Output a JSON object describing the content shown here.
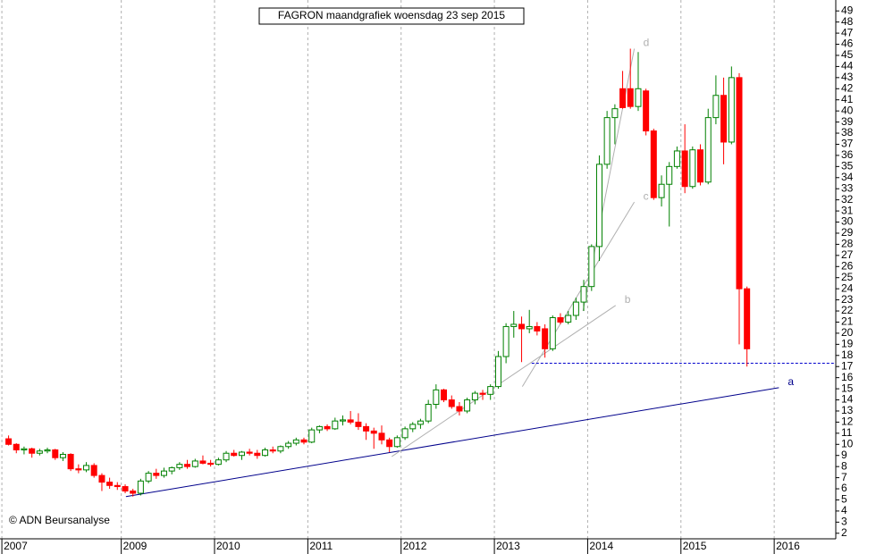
{
  "chart_data": {
    "type": "candlestick",
    "title": "FAGRON maandgrafiek woensdag 23 sep 2015",
    "annotation": "© ADN Beursanalyse",
    "x": [
      2007.792,
      2007.875,
      2007.958,
      2008.042,
      2008.125,
      2008.208,
      2008.292,
      2008.375,
      2008.458,
      2008.542,
      2008.625,
      2008.708,
      2008.792,
      2008.875,
      2008.958,
      2009.042,
      2009.125,
      2009.208,
      2009.292,
      2009.375,
      2009.458,
      2009.542,
      2009.625,
      2009.708,
      2009.792,
      2009.875,
      2009.958,
      2010.042,
      2010.125,
      2010.208,
      2010.292,
      2010.375,
      2010.458,
      2010.542,
      2010.625,
      2010.708,
      2010.792,
      2010.875,
      2010.958,
      2011.042,
      2011.125,
      2011.208,
      2011.292,
      2011.375,
      2011.458,
      2011.542,
      2011.625,
      2011.708,
      2011.792,
      2011.875,
      2011.958,
      2012.042,
      2012.125,
      2012.208,
      2012.292,
      2012.375,
      2012.458,
      2012.542,
      2012.625,
      2012.708,
      2012.792,
      2012.875,
      2012.958,
      2013.042,
      2013.125,
      2013.208,
      2013.292,
      2013.375,
      2013.458,
      2013.542,
      2013.625,
      2013.708,
      2013.792,
      2013.875,
      2013.958,
      2014.042,
      2014.125,
      2014.208,
      2014.292,
      2014.375,
      2014.458,
      2014.542,
      2014.625,
      2014.708,
      2014.792,
      2014.875,
      2014.958,
      2015.042,
      2015.125,
      2015.208,
      2015.292,
      2015.375,
      2015.458,
      2015.542,
      2015.625,
      2015.708
    ],
    "open": [
      10.5,
      10.0,
      9.5,
      9.6,
      9.2,
      9.4,
      9.5,
      8.8,
      9.1,
      7.8,
      7.7,
      8.1,
      7.2,
      6.6,
      6.3,
      6.2,
      5.8,
      5.6,
      6.7,
      7.4,
      7.2,
      7.6,
      7.9,
      8.2,
      8.0,
      8.5,
      8.3,
      8.2,
      8.6,
      9.2,
      9.0,
      9.3,
      9.2,
      9.0,
      9.5,
      9.4,
      9.8,
      10.1,
      10.4,
      10.2,
      11.3,
      11.6,
      11.4,
      12.1,
      12.2,
      12.0,
      11.6,
      11.2,
      11.0,
      10.4,
      9.8,
      10.6,
      11.4,
      11.8,
      12.1,
      13.6,
      14.9,
      14.0,
      13.4,
      13.0,
      14.0,
      14.6,
      14.5,
      15.2,
      17.9,
      20.6,
      20.8,
      20.4,
      20.6,
      20.4,
      18.6,
      21.4,
      21.0,
      21.6,
      22.8,
      24.2,
      27.8,
      35.2,
      39.4,
      42.0,
      42.0,
      40.4,
      41.8,
      38.2,
      32.2,
      33.4,
      35.0,
      36.4,
      33.2,
      36.5,
      33.6,
      39.4,
      41.4,
      37.2,
      43.0,
      24.0
    ],
    "high": [
      10.8,
      10.1,
      9.8,
      9.7,
      9.6,
      9.7,
      9.6,
      9.3,
      9.2,
      8.2,
      8.4,
      8.3,
      7.4,
      7.0,
      6.6,
      6.4,
      6.0,
      6.9,
      7.6,
      7.8,
      7.9,
      8.0,
      8.4,
      8.6,
      8.7,
      9.0,
      8.6,
      8.8,
      9.4,
      9.5,
      9.4,
      9.6,
      9.5,
      9.7,
      9.8,
      9.9,
      10.3,
      10.6,
      10.6,
      11.5,
      11.7,
      11.8,
      12.4,
      12.6,
      13.0,
      12.8,
      11.9,
      11.5,
      11.7,
      10.6,
      10.8,
      11.6,
      12.0,
      12.3,
      14.0,
      15.4,
      15.0,
      14.4,
      13.8,
      14.2,
      14.8,
      14.9,
      15.4,
      18.4,
      20.9,
      22.0,
      21.5,
      22.1,
      21.0,
      20.8,
      21.6,
      21.8,
      22.0,
      23.2,
      24.8,
      28.0,
      36.0,
      40.0,
      40.6,
      43.6,
      45.6,
      45.3,
      42.0,
      38.4,
      34.2,
      35.4,
      36.8,
      38.8,
      36.8,
      37.0,
      40.2,
      43.2,
      43.0,
      44.0,
      43.4,
      24.2
    ],
    "low": [
      9.9,
      9.2,
      9.1,
      8.8,
      9.0,
      9.2,
      8.6,
      8.5,
      7.6,
      7.4,
      7.5,
      7.0,
      5.8,
      6.0,
      5.9,
      5.6,
      5.3,
      5.4,
      6.5,
      6.9,
      7.0,
      7.3,
      7.7,
      7.8,
      7.9,
      8.2,
      8.0,
      8.1,
      8.4,
      8.9,
      8.6,
      9.0,
      8.7,
      8.9,
      9.2,
      9.2,
      9.6,
      9.9,
      10.0,
      10.1,
      11.0,
      11.2,
      11.3,
      11.7,
      11.8,
      11.3,
      10.4,
      9.6,
      10.0,
      9.3,
      9.7,
      10.4,
      11.1,
      11.4,
      11.9,
      13.2,
      13.8,
      13.2,
      12.6,
      12.8,
      13.6,
      14.0,
      14.0,
      15.0,
      17.3,
      19.6,
      17.4,
      20.0,
      19.8,
      17.8,
      18.4,
      20.8,
      20.8,
      21.2,
      22.0,
      23.8,
      26.5,
      34.8,
      37.0,
      40.2,
      40.2,
      40.0,
      37.8,
      32.0,
      31.4,
      29.6,
      34.8,
      32.6,
      33.0,
      33.3,
      33.4,
      38.8,
      35.2,
      37.0,
      19.0,
      17.0
    ],
    "close": [
      10.0,
      9.5,
      9.6,
      9.2,
      9.4,
      9.5,
      8.8,
      9.1,
      7.8,
      7.7,
      8.1,
      7.2,
      6.6,
      6.3,
      6.2,
      5.8,
      5.6,
      6.7,
      7.4,
      7.2,
      7.6,
      7.9,
      8.2,
      8.0,
      8.5,
      8.3,
      8.2,
      8.6,
      9.2,
      9.0,
      9.3,
      9.2,
      9.0,
      9.5,
      9.4,
      9.8,
      10.1,
      10.4,
      10.2,
      11.3,
      11.6,
      11.4,
      12.1,
      12.2,
      12.0,
      11.6,
      11.2,
      11.0,
      10.4,
      9.8,
      10.6,
      11.4,
      11.8,
      12.1,
      13.6,
      14.9,
      14.0,
      13.4,
      13.0,
      14.0,
      14.6,
      14.5,
      15.2,
      17.9,
      20.6,
      20.8,
      20.4,
      20.6,
      20.2,
      18.6,
      21.4,
      21.0,
      21.6,
      22.8,
      24.2,
      27.8,
      35.2,
      39.4,
      40.2,
      40.3,
      40.4,
      42.0,
      38.2,
      32.2,
      33.4,
      35.0,
      36.4,
      33.2,
      36.5,
      33.6,
      39.4,
      41.4,
      37.2,
      43.0,
      24.0,
      18.6
    ],
    "up_color": "#008000",
    "down_color": "#ff0000",
    "lines": [
      {
        "label": "a",
        "color": "#00008b",
        "x": [
          2009.05,
          2016.05
        ],
        "y": [
          5.3,
          15.1
        ]
      },
      {
        "label": "b",
        "color": "#b0b0b0",
        "x": [
          2011.9,
          2014.3
        ],
        "y": [
          8.9,
          22.5
        ]
      },
      {
        "label": "c",
        "color": "#b0b0b0",
        "x": [
          2013.3,
          2014.5
        ],
        "y": [
          15.2,
          31.8
        ]
      },
      {
        "label": "d",
        "color": "#b0b0b0",
        "x": [
          2013.95,
          2014.5
        ],
        "y": [
          22.0,
          45.6
        ]
      }
    ],
    "level": {
      "color": "#0000cd",
      "x": [
        2013.4,
        2016.66
      ],
      "y": 17.3
    },
    "xlim": [
      2007.7,
      2016.66
    ],
    "xticks": [
      {
        "value": 2007.72,
        "label": "2007"
      },
      2009,
      2010,
      2011,
      2012,
      2013,
      2014,
      2015,
      2016
    ],
    "ylim": [
      1.5,
      49.5
    ],
    "yticks": [
      2,
      3,
      4,
      5,
      6,
      7,
      8,
      9,
      10,
      11,
      12,
      13,
      14,
      15,
      16,
      17,
      18,
      19,
      20,
      21,
      22,
      23,
      24,
      25,
      26,
      27,
      28,
      29,
      30,
      31,
      32,
      33,
      34,
      35,
      36,
      37,
      38,
      39,
      40,
      41,
      42,
      43,
      44,
      45,
      46,
      47,
      48,
      49
    ],
    "grid": true
  }
}
